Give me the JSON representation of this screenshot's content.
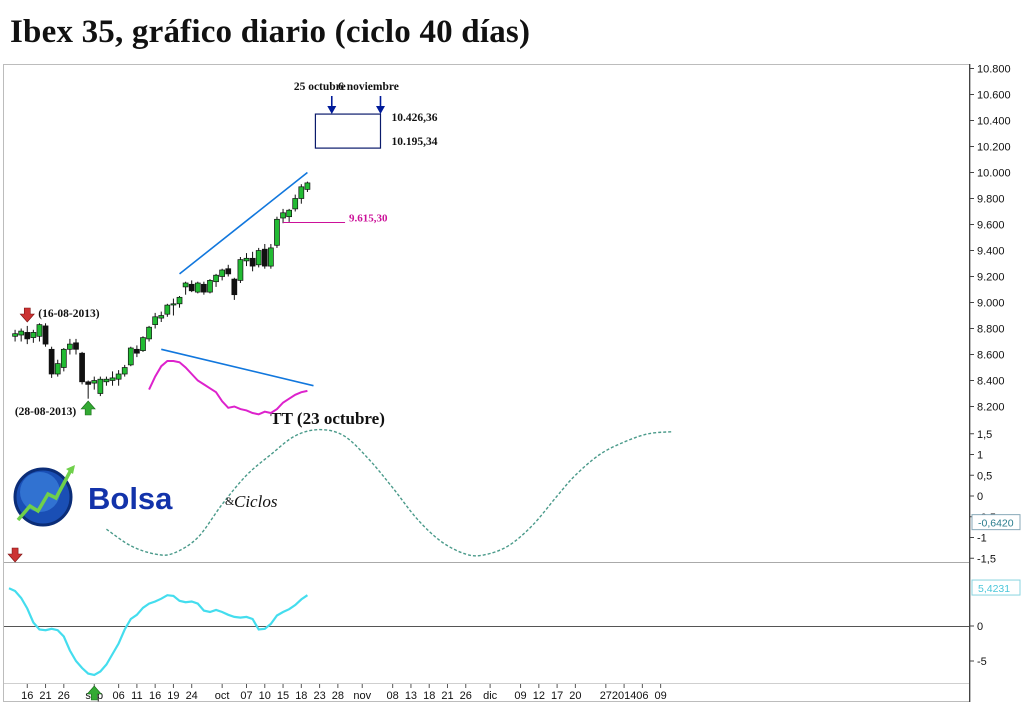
{
  "title": "Ibex 35, gráfico diario (ciclo 40 días)",
  "colors": {
    "candle_up": "#22bb33",
    "candle_down": "#111111",
    "trendline": "#1177dd",
    "oscillator": "#dd22cc",
    "cycle": "#4a9a8a",
    "momentum": "#44ddee",
    "price_label": "#cc1199",
    "marker_blue": "#001a99",
    "arrow_red": "#cc3333",
    "arrow_green": "#33aa33"
  },
  "logo": {
    "word": "Bolsa",
    "amp": "&",
    "word2": "Ciclos"
  },
  "chart_data": [
    {
      "type": "candlestick",
      "title": "Ibex 35, gráfico diario (ciclo 40 días)",
      "y_axis": {
        "range": [
          8100,
          10850
        ],
        "ticks": [
          "10.800",
          "10.600",
          "10.400",
          "10.200",
          "10.000",
          "9.800",
          "9.600",
          "9.400",
          "9.200",
          "9.000",
          "8.800",
          "8.600",
          "8.400",
          "8.200"
        ]
      },
      "candles": [
        {
          "date": "2013-08-14",
          "o": 8740,
          "h": 8790,
          "l": 8700,
          "c": 8760
        },
        {
          "date": "2013-08-15",
          "o": 8750,
          "h": 8800,
          "l": 8700,
          "c": 8780
        },
        {
          "date": "2013-08-16",
          "o": 8770,
          "h": 8820,
          "l": 8680,
          "c": 8720
        },
        {
          "date": "2013-08-19",
          "o": 8730,
          "h": 8790,
          "l": 8690,
          "c": 8770
        },
        {
          "date": "2013-08-20",
          "o": 8740,
          "h": 8840,
          "l": 8700,
          "c": 8830
        },
        {
          "date": "2013-08-21",
          "o": 8820,
          "h": 8840,
          "l": 8660,
          "c": 8680
        },
        {
          "date": "2013-08-22",
          "o": 8640,
          "h": 8660,
          "l": 8420,
          "c": 8450
        },
        {
          "date": "2013-08-23",
          "o": 8450,
          "h": 8560,
          "l": 8430,
          "c": 8530
        },
        {
          "date": "2013-08-26",
          "o": 8500,
          "h": 8650,
          "l": 8470,
          "c": 8640
        },
        {
          "date": "2013-08-27",
          "o": 8640,
          "h": 8720,
          "l": 8600,
          "c": 8680
        },
        {
          "date": "2013-08-28",
          "o": 8690,
          "h": 8720,
          "l": 8600,
          "c": 8640
        },
        {
          "date": "2013-08-29",
          "o": 8610,
          "h": 8620,
          "l": 8370,
          "c": 8390
        },
        {
          "date": "2013-08-30",
          "o": 8390,
          "h": 8400,
          "l": 8260,
          "c": 8370
        },
        {
          "date": "2013-09-02",
          "o": 8380,
          "h": 8430,
          "l": 8330,
          "c": 8400
        },
        {
          "date": "2013-09-03",
          "o": 8300,
          "h": 8430,
          "l": 8280,
          "c": 8410
        },
        {
          "date": "2013-09-04",
          "o": 8390,
          "h": 8430,
          "l": 8360,
          "c": 8410
        },
        {
          "date": "2013-09-05",
          "o": 8400,
          "h": 8470,
          "l": 8360,
          "c": 8420
        },
        {
          "date": "2013-09-06",
          "o": 8410,
          "h": 8480,
          "l": 8360,
          "c": 8450
        },
        {
          "date": "2013-09-09",
          "o": 8450,
          "h": 8520,
          "l": 8430,
          "c": 8500
        },
        {
          "date": "2013-09-10",
          "o": 8520,
          "h": 8660,
          "l": 8510,
          "c": 8650
        },
        {
          "date": "2013-09-11",
          "o": 8640,
          "h": 8670,
          "l": 8580,
          "c": 8610
        },
        {
          "date": "2013-09-12",
          "o": 8630,
          "h": 8740,
          "l": 8620,
          "c": 8730
        },
        {
          "date": "2013-09-13",
          "o": 8720,
          "h": 8820,
          "l": 8700,
          "c": 8810
        },
        {
          "date": "2013-09-16",
          "o": 8830,
          "h": 8920,
          "l": 8800,
          "c": 8890
        },
        {
          "date": "2013-09-17",
          "o": 8880,
          "h": 8930,
          "l": 8850,
          "c": 8900
        },
        {
          "date": "2013-09-18",
          "o": 8910,
          "h": 8990,
          "l": 8890,
          "c": 8980
        },
        {
          "date": "2013-09-19",
          "o": 8990,
          "h": 9030,
          "l": 8900,
          "c": 8990
        },
        {
          "date": "2013-09-20",
          "o": 8990,
          "h": 9050,
          "l": 8960,
          "c": 9040
        },
        {
          "date": "2013-09-23",
          "o": 9120,
          "h": 9160,
          "l": 9060,
          "c": 9150
        },
        {
          "date": "2013-09-24",
          "o": 9140,
          "h": 9170,
          "l": 9080,
          "c": 9090
        },
        {
          "date": "2013-09-25",
          "o": 9080,
          "h": 9160,
          "l": 9070,
          "c": 9150
        },
        {
          "date": "2013-09-26",
          "o": 9140,
          "h": 9160,
          "l": 9060,
          "c": 9080
        },
        {
          "date": "2013-09-27",
          "o": 9080,
          "h": 9180,
          "l": 9070,
          "c": 9170
        },
        {
          "date": "2013-09-30",
          "o": 9160,
          "h": 9220,
          "l": 9120,
          "c": 9210
        },
        {
          "date": "2013-10-01",
          "o": 9200,
          "h": 9260,
          "l": 9170,
          "c": 9250
        },
        {
          "date": "2013-10-02",
          "o": 9260,
          "h": 9290,
          "l": 9200,
          "c": 9220
        },
        {
          "date": "2013-10-03",
          "o": 9180,
          "h": 9190,
          "l": 9020,
          "c": 9060
        },
        {
          "date": "2013-10-04",
          "o": 9170,
          "h": 9350,
          "l": 9150,
          "c": 9330
        },
        {
          "date": "2013-10-07",
          "o": 9320,
          "h": 9380,
          "l": 9280,
          "c": 9340
        },
        {
          "date": "2013-10-08",
          "o": 9340,
          "h": 9390,
          "l": 9240,
          "c": 9280
        },
        {
          "date": "2013-10-09",
          "o": 9290,
          "h": 9420,
          "l": 9270,
          "c": 9400
        },
        {
          "date": "2013-10-10",
          "o": 9410,
          "h": 9450,
          "l": 9260,
          "c": 9280
        },
        {
          "date": "2013-10-11",
          "o": 9280,
          "h": 9450,
          "l": 9260,
          "c": 9420
        },
        {
          "date": "2013-10-14",
          "o": 9440,
          "h": 9660,
          "l": 9420,
          "c": 9640
        },
        {
          "date": "2013-10-15",
          "o": 9650,
          "h": 9720,
          "l": 9610,
          "c": 9690
        },
        {
          "date": "2013-10-16",
          "o": 9660,
          "h": 9720,
          "l": 9620,
          "c": 9710
        },
        {
          "date": "2013-10-17",
          "o": 9720,
          "h": 9830,
          "l": 9700,
          "c": 9800
        },
        {
          "date": "2013-10-18",
          "o": 9800,
          "h": 9910,
          "l": 9760,
          "c": 9890
        },
        {
          "date": "2013-10-21",
          "o": 9870,
          "h": 9930,
          "l": 9850,
          "c": 9920
        }
      ],
      "annotations": [
        {
          "text": "(16-08-2013)",
          "date": "2013-08-16",
          "price": 8880,
          "arrow": "down",
          "arrow_color": "red"
        },
        {
          "text": "(28-08-2013)",
          "date": "2013-08-30",
          "price": 8200,
          "arrow": "up",
          "arrow_color": "green"
        },
        {
          "text": "25 octubre",
          "date": "2013-10-25",
          "marker": "down-arrow"
        },
        {
          "text": "6 noviembre",
          "date": "2013-11-06",
          "marker": "down-arrow"
        },
        {
          "text": "10.426,36",
          "price": 10426.36
        },
        {
          "text": "10.195,34",
          "price": 10195.34
        },
        {
          "text": "9.615,30",
          "price": 9615.3
        }
      ],
      "target_zone": {
        "date_from": "2013-10-21",
        "date_to": "2013-11-06",
        "price_high": 10426.36,
        "price_low": 10195.34
      },
      "upper_trendline": {
        "from": {
          "date": "2013-09-20",
          "price": 9220
        },
        "to": {
          "date": "2013-10-21",
          "price": 10000
        }
      },
      "lower_trendline": {
        "from": {
          "date": "2013-09-17",
          "price": 8640
        },
        "to": {
          "date": "2013-10-22",
          "price": 8360
        }
      },
      "oscillator": {
        "dates": [
          "2013-09-13",
          "2013-09-16",
          "2013-09-17",
          "2013-09-18",
          "2013-09-19",
          "2013-09-20",
          "2013-09-23",
          "2013-09-24",
          "2013-09-25",
          "2013-09-26",
          "2013-09-27",
          "2013-09-30",
          "2013-10-01",
          "2013-10-02",
          "2013-10-03",
          "2013-10-04",
          "2013-10-07",
          "2013-10-08",
          "2013-10-09",
          "2013-10-10",
          "2013-10-11",
          "2013-10-14",
          "2013-10-15",
          "2013-10-16",
          "2013-10-17",
          "2013-10-18",
          "2013-10-21"
        ],
        "values": [
          8330,
          8430,
          8510,
          8550,
          8550,
          8540,
          8500,
          8450,
          8400,
          8370,
          8340,
          8310,
          8240,
          8190,
          8200,
          8180,
          8170,
          8150,
          8140,
          8160,
          8150,
          8180,
          8230,
          8260,
          8290,
          8310,
          8320
        ]
      }
    },
    {
      "type": "line",
      "name": "TT (23 octubre)",
      "y_axis": {
        "range": [
          -1.9,
          1.9
        ],
        "ticks": [
          "1,5",
          "1",
          "0,5",
          "0",
          "-0,5",
          "-1",
          "-1,5"
        ],
        "readout": "-0,6420"
      },
      "line_style": "dashed",
      "annotations": [
        {
          "text": "TT (23 octubre)",
          "date": "2013-10-23"
        }
      ],
      "x": [
        "2013-09-04",
        "2013-09-10",
        "2013-09-16",
        "2013-09-19",
        "2013-09-25",
        "2013-10-01",
        "2013-10-07",
        "2013-10-11",
        "2013-10-17",
        "2013-10-23",
        "2013-10-29",
        "2013-11-04",
        "2013-11-08",
        "2013-11-14",
        "2013-11-20",
        "2013-11-26",
        "2013-11-29",
        "2013-12-05",
        "2013-12-11",
        "2013-12-17",
        "2013-12-20",
        "2013-12-26",
        "2014-01-01",
        "2014-01-07",
        "2014-01-13"
      ],
      "y": [
        -0.8,
        -1.2,
        -1.4,
        -1.38,
        -1.0,
        -0.2,
        0.5,
        1.0,
        1.45,
        1.6,
        1.45,
        0.9,
        0.2,
        -0.55,
        -1.1,
        -1.4,
        -1.42,
        -1.2,
        -0.7,
        0.0,
        0.5,
        1.0,
        1.3,
        1.5,
        1.55
      ]
    },
    {
      "type": "line",
      "y_axis": {
        "range": [
          -8,
          5.5
        ],
        "ticks": [
          "0",
          "-5"
        ],
        "readout": "5,4231"
      },
      "annotations": [
        {
          "date": "2013-08-14",
          "arrow": "down",
          "arrow_color": "red"
        },
        {
          "date": "2013-09-02",
          "arrow": "up",
          "arrow_color": "green"
        }
      ],
      "x": [
        "2013-08-13",
        "2013-08-14",
        "2013-08-15",
        "2013-08-16",
        "2013-08-19",
        "2013-08-20",
        "2013-08-21",
        "2013-08-22",
        "2013-08-23",
        "2013-08-26",
        "2013-08-27",
        "2013-08-28",
        "2013-08-29",
        "2013-08-30",
        "2013-09-02",
        "2013-09-03",
        "2013-09-04",
        "2013-09-05",
        "2013-09-06",
        "2013-09-09",
        "2013-09-10",
        "2013-09-11",
        "2013-09-12",
        "2013-09-13",
        "2013-09-16",
        "2013-09-17",
        "2013-09-18",
        "2013-09-19",
        "2013-09-20",
        "2013-09-23",
        "2013-09-24",
        "2013-09-25",
        "2013-09-26",
        "2013-09-27",
        "2013-09-30",
        "2013-10-01",
        "2013-10-02",
        "2013-10-03",
        "2013-10-04",
        "2013-10-07",
        "2013-10-08",
        "2013-10-09",
        "2013-10-10",
        "2013-10-11",
        "2013-10-14",
        "2013-10-15",
        "2013-10-16",
        "2013-10-17",
        "2013-10-18",
        "2013-10-21"
      ],
      "y": [
        5.4,
        5.0,
        4.0,
        2.5,
        0.5,
        -0.5,
        -0.6,
        -0.4,
        -0.6,
        -1.5,
        -3.5,
        -5.0,
        -6.0,
        -6.8,
        -7.0,
        -6.5,
        -5.5,
        -4.0,
        -2.5,
        -0.5,
        1.0,
        1.6,
        2.6,
        3.2,
        3.5,
        3.9,
        4.4,
        4.3,
        3.6,
        3.4,
        3.5,
        3.2,
        2.2,
        2.0,
        2.3,
        2.0,
        1.6,
        1.3,
        1.2,
        1.3,
        1.0,
        -0.5,
        -0.4,
        0.3,
        1.5,
        2.0,
        2.4,
        3.0,
        3.8,
        4.4
      ]
    }
  ],
  "x_axis": {
    "ticks": [
      {
        "date": "2013-08-16",
        "label": "16"
      },
      {
        "date": "2013-08-21",
        "label": "21"
      },
      {
        "date": "2013-08-26",
        "label": "26"
      },
      {
        "date": "2013-09-02",
        "label": "sep"
      },
      {
        "date": "2013-09-06",
        "label": "06"
      },
      {
        "date": "2013-09-11",
        "label": "11"
      },
      {
        "date": "2013-09-16",
        "label": "16"
      },
      {
        "date": "2013-09-19",
        "label": "19"
      },
      {
        "date": "2013-09-24",
        "label": "24"
      },
      {
        "date": "2013-10-01",
        "label": "oct"
      },
      {
        "date": "2013-10-07",
        "label": "07"
      },
      {
        "date": "2013-10-10",
        "label": "10"
      },
      {
        "date": "2013-10-15",
        "label": "15"
      },
      {
        "date": "2013-10-18",
        "label": "18"
      },
      {
        "date": "2013-10-23",
        "label": "23"
      },
      {
        "date": "2013-10-28",
        "label": "28"
      },
      {
        "date": "2013-11-01",
        "label": "nov"
      },
      {
        "date": "2013-11-08",
        "label": "08"
      },
      {
        "date": "2013-11-13",
        "label": "13"
      },
      {
        "date": "2013-11-18",
        "label": "18"
      },
      {
        "date": "2013-11-21",
        "label": "21"
      },
      {
        "date": "2013-11-26",
        "label": "26"
      },
      {
        "date": "2013-12-02",
        "label": "dic"
      },
      {
        "date": "2013-12-09",
        "label": "09"
      },
      {
        "date": "2013-12-12",
        "label": "12"
      },
      {
        "date": "2013-12-17",
        "label": "17"
      },
      {
        "date": "2013-12-20",
        "label": "20"
      },
      {
        "date": "2013-12-27",
        "label": "27"
      },
      {
        "date": "2014-01-01",
        "label": "2014"
      },
      {
        "date": "2014-01-06",
        "label": "06"
      },
      {
        "date": "2014-01-09",
        "label": "09"
      }
    ]
  }
}
